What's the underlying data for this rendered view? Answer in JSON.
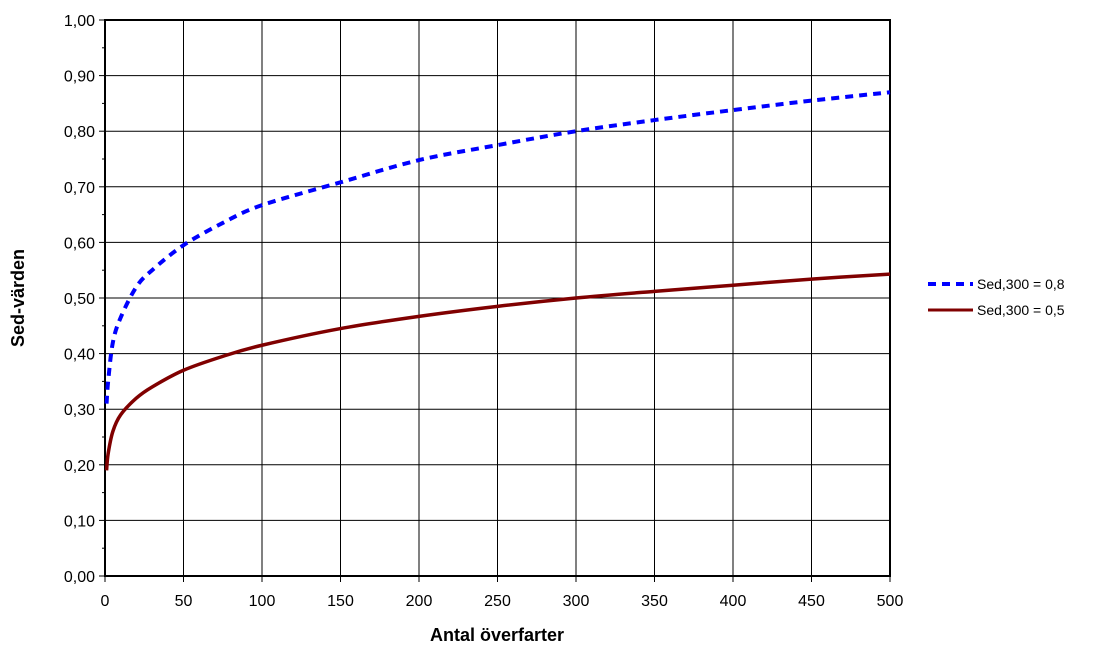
{
  "chart_data": {
    "type": "line",
    "xlabel": "Antal överfarter",
    "ylabel": "Sed-värden",
    "xlim": [
      0,
      500
    ],
    "ylim": [
      0,
      1
    ],
    "x_ticks": [
      "0",
      "50",
      "100",
      "150",
      "200",
      "250",
      "300",
      "350",
      "400",
      "450",
      "500"
    ],
    "y_ticks": [
      "0,00",
      "0,10",
      "0,20",
      "0,30",
      "0,40",
      "0,50",
      "0,60",
      "0,70",
      "0,80",
      "0,90",
      "1,00"
    ],
    "grid": true,
    "legend_position": "right",
    "series": [
      {
        "name": "Sed,300 = 0,8",
        "color": "#0000ff",
        "style": "dashed",
        "x": [
          1,
          2,
          5,
          10,
          20,
          30,
          50,
          75,
          100,
          150,
          200,
          250,
          300,
          350,
          400,
          450,
          500
        ],
        "values": [
          0.31,
          0.35,
          0.42,
          0.465,
          0.52,
          0.55,
          0.595,
          0.635,
          0.667,
          0.708,
          0.748,
          0.775,
          0.8,
          0.82,
          0.838,
          0.855,
          0.87
        ]
      },
      {
        "name": "Sed,300 = 0,5",
        "color": "#800000",
        "style": "solid",
        "x": [
          1,
          2,
          5,
          10,
          20,
          30,
          50,
          75,
          100,
          150,
          200,
          250,
          300,
          350,
          400,
          450,
          500
        ],
        "values": [
          0.19,
          0.22,
          0.26,
          0.29,
          0.32,
          0.34,
          0.37,
          0.395,
          0.415,
          0.445,
          0.467,
          0.485,
          0.5,
          0.512,
          0.523,
          0.534,
          0.543
        ]
      }
    ]
  }
}
